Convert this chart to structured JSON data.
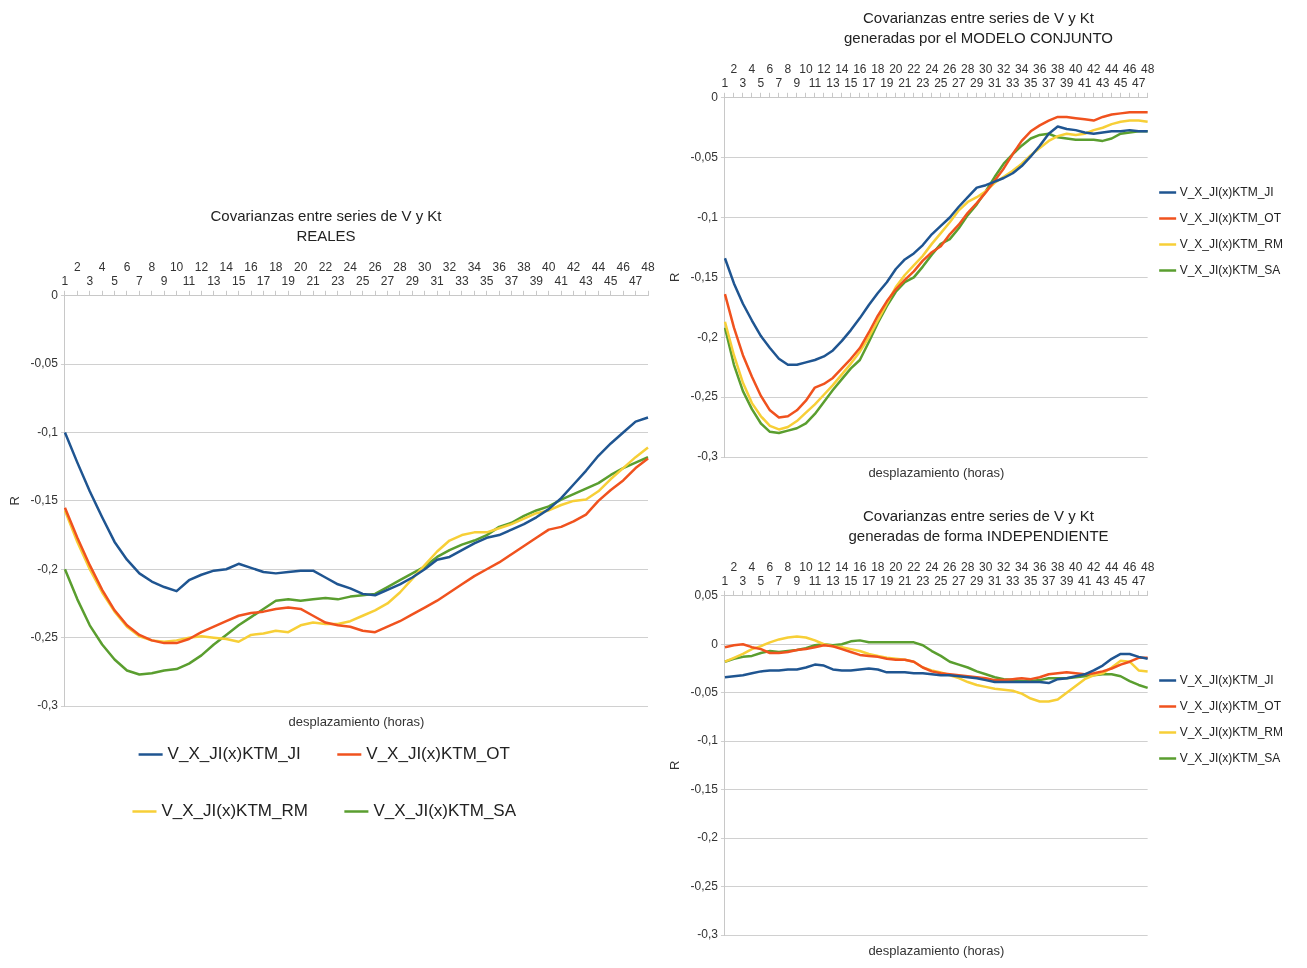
{
  "chart_data": [
    {
      "type": "line",
      "title": "Covarianzas entre series de V y Kt",
      "subtitle": "REALES",
      "xlabel": "desplazamiento (horas)",
      "ylabel": "R",
      "categories": [
        "1",
        "2",
        "3",
        "4",
        "5",
        "6",
        "7",
        "8",
        "9",
        "10",
        "11",
        "12",
        "13",
        "14",
        "15",
        "16",
        "17",
        "18",
        "19",
        "20",
        "21",
        "22",
        "23",
        "24",
        "25",
        "26",
        "27",
        "28",
        "29",
        "30",
        "31",
        "32",
        "33",
        "34",
        "35",
        "36",
        "37",
        "38",
        "39",
        "40",
        "41",
        "42",
        "43",
        "44",
        "45",
        "46",
        "47",
        "48"
      ],
      "series": [
        {
          "name": "V_X_JI(x)KTM_JI",
          "color": "#1f5591",
          "values": [
            -0.1,
            -0.122,
            -0.143,
            -0.162,
            -0.18,
            -0.193,
            -0.203,
            -0.209,
            -0.213,
            -0.216,
            -0.208,
            -0.204,
            -0.201,
            -0.2,
            -0.196,
            -0.199,
            -0.202,
            -0.203,
            -0.202,
            -0.201,
            -0.201,
            -0.206,
            -0.211,
            -0.214,
            -0.218,
            -0.219,
            -0.215,
            -0.211,
            -0.206,
            -0.2,
            -0.193,
            -0.191,
            -0.186,
            -0.181,
            -0.177,
            -0.175,
            -0.171,
            -0.167,
            -0.162,
            -0.156,
            -0.148,
            -0.138,
            -0.128,
            -0.117,
            -0.108,
            -0.1,
            -0.092,
            -0.089
          ]
        },
        {
          "name": "V_X_JI(x)KTM_OT",
          "color": "#f0521e",
          "values": [
            -0.155,
            -0.177,
            -0.197,
            -0.215,
            -0.23,
            -0.241,
            -0.248,
            -0.252,
            -0.254,
            -0.254,
            -0.251,
            -0.246,
            -0.242,
            -0.238,
            -0.234,
            -0.232,
            -0.231,
            -0.229,
            -0.228,
            -0.229,
            -0.234,
            -0.239,
            -0.241,
            -0.242,
            -0.245,
            -0.246,
            -0.242,
            -0.238,
            -0.233,
            -0.228,
            -0.223,
            -0.217,
            -0.211,
            -0.205,
            -0.2,
            -0.195,
            -0.189,
            -0.183,
            -0.177,
            -0.171,
            -0.169,
            -0.165,
            -0.16,
            -0.15,
            -0.142,
            -0.135,
            -0.126,
            -0.119
          ]
        },
        {
          "name": "V_X_JI(x)KTM_RM",
          "color": "#f7cf37",
          "values": [
            -0.157,
            -0.18,
            -0.2,
            -0.217,
            -0.231,
            -0.242,
            -0.249,
            -0.252,
            -0.253,
            -0.252,
            -0.25,
            -0.249,
            -0.25,
            -0.251,
            -0.253,
            -0.248,
            -0.247,
            -0.245,
            -0.246,
            -0.241,
            -0.239,
            -0.24,
            -0.24,
            -0.238,
            -0.234,
            -0.23,
            -0.225,
            -0.217,
            -0.207,
            -0.197,
            -0.187,
            -0.179,
            -0.175,
            -0.173,
            -0.173,
            -0.17,
            -0.167,
            -0.163,
            -0.159,
            -0.157,
            -0.153,
            -0.15,
            -0.149,
            -0.143,
            -0.134,
            -0.126,
            -0.118,
            -0.111
          ]
        },
        {
          "name": "V_X_JI(x)KTM_SA",
          "color": "#5a9e2f",
          "values": [
            -0.2,
            -0.222,
            -0.241,
            -0.255,
            -0.266,
            -0.274,
            -0.277,
            -0.276,
            -0.274,
            -0.273,
            -0.269,
            -0.263,
            -0.255,
            -0.248,
            -0.241,
            -0.235,
            -0.229,
            -0.223,
            -0.222,
            -0.223,
            -0.222,
            -0.221,
            -0.222,
            -0.22,
            -0.219,
            -0.218,
            -0.213,
            -0.208,
            -0.203,
            -0.198,
            -0.191,
            -0.186,
            -0.182,
            -0.179,
            -0.175,
            -0.169,
            -0.166,
            -0.161,
            -0.157,
            -0.154,
            -0.149,
            -0.145,
            -0.141,
            -0.137,
            -0.131,
            -0.126,
            -0.122,
            -0.118
          ]
        }
      ],
      "ylim": [
        -0.3,
        0
      ],
      "yticks": [
        {
          "value": -0.3,
          "label": "-0,3"
        },
        {
          "value": -0.25,
          "label": "-0,25"
        },
        {
          "value": -0.2,
          "label": "-0,2"
        },
        {
          "value": -0.15,
          "label": "-0,15"
        },
        {
          "value": -0.1,
          "label": "-0,1"
        },
        {
          "value": -0.05,
          "label": "-0,05"
        },
        {
          "value": 0,
          "label": "0"
        }
      ],
      "grid": "y",
      "legend": "bottom"
    },
    {
      "type": "line",
      "title": "Covarianzas entre series de V y Kt",
      "subtitle": "generadas por el MODELO CONJUNTO",
      "xlabel": "desplazamiento (horas)",
      "ylabel": "R",
      "categories": [
        "1",
        "2",
        "3",
        "4",
        "5",
        "6",
        "7",
        "8",
        "9",
        "10",
        "11",
        "12",
        "13",
        "14",
        "15",
        "16",
        "17",
        "18",
        "19",
        "20",
        "21",
        "22",
        "23",
        "24",
        "25",
        "26",
        "27",
        "28",
        "29",
        "30",
        "31",
        "32",
        "33",
        "34",
        "35",
        "36",
        "37",
        "38",
        "39",
        "40",
        "41",
        "42",
        "43",
        "44",
        "45",
        "46",
        "47",
        "48"
      ],
      "series": [
        {
          "name": "V_X_JI(x)KTM_JI",
          "color": "#1f5591",
          "values": [
            -0.134,
            -0.155,
            -0.172,
            -0.186,
            -0.199,
            -0.209,
            -0.218,
            -0.223,
            -0.223,
            -0.221,
            -0.219,
            -0.216,
            -0.211,
            -0.203,
            -0.194,
            -0.184,
            -0.173,
            -0.163,
            -0.154,
            -0.143,
            -0.135,
            -0.13,
            -0.123,
            -0.114,
            -0.107,
            -0.1,
            -0.091,
            -0.083,
            -0.075,
            -0.073,
            -0.07,
            -0.067,
            -0.063,
            -0.057,
            -0.049,
            -0.04,
            -0.03,
            -0.024,
            -0.026,
            -0.027,
            -0.029,
            -0.03,
            -0.029,
            -0.028,
            -0.028,
            -0.027,
            -0.028,
            -0.028
          ]
        },
        {
          "name": "V_X_JI(x)KTM_OT",
          "color": "#f0521e",
          "values": [
            -0.164,
            -0.192,
            -0.215,
            -0.233,
            -0.249,
            -0.261,
            -0.267,
            -0.266,
            -0.261,
            -0.253,
            -0.242,
            -0.239,
            -0.234,
            -0.226,
            -0.218,
            -0.209,
            -0.196,
            -0.182,
            -0.17,
            -0.16,
            -0.152,
            -0.145,
            -0.136,
            -0.129,
            -0.124,
            -0.114,
            -0.106,
            -0.096,
            -0.088,
            -0.079,
            -0.069,
            -0.059,
            -0.047,
            -0.036,
            -0.028,
            -0.023,
            -0.019,
            -0.016,
            -0.016,
            -0.017,
            -0.018,
            -0.019,
            -0.016,
            -0.014,
            -0.013,
            -0.012,
            -0.012,
            -0.012
          ]
        },
        {
          "name": "V_X_JI(x)KTM_RM",
          "color": "#f7cf37",
          "values": [
            -0.187,
            -0.215,
            -0.238,
            -0.255,
            -0.266,
            -0.274,
            -0.277,
            -0.275,
            -0.27,
            -0.263,
            -0.256,
            -0.248,
            -0.24,
            -0.231,
            -0.222,
            -0.212,
            -0.2,
            -0.186,
            -0.172,
            -0.158,
            -0.148,
            -0.14,
            -0.132,
            -0.122,
            -0.113,
            -0.104,
            -0.094,
            -0.087,
            -0.083,
            -0.078,
            -0.071,
            -0.066,
            -0.061,
            -0.055,
            -0.048,
            -0.042,
            -0.036,
            -0.032,
            -0.03,
            -0.031,
            -0.03,
            -0.027,
            -0.025,
            -0.022,
            -0.02,
            -0.019,
            -0.019,
            -0.02
          ]
        },
        {
          "name": "V_X_JI(x)KTM_SA",
          "color": "#5a9e2f",
          "values": [
            -0.192,
            -0.223,
            -0.245,
            -0.26,
            -0.272,
            -0.279,
            -0.28,
            -0.278,
            -0.276,
            -0.272,
            -0.264,
            -0.254,
            -0.244,
            -0.235,
            -0.226,
            -0.219,
            -0.204,
            -0.188,
            -0.174,
            -0.162,
            -0.154,
            -0.15,
            -0.141,
            -0.131,
            -0.122,
            -0.118,
            -0.109,
            -0.098,
            -0.089,
            -0.078,
            -0.066,
            -0.055,
            -0.047,
            -0.04,
            -0.034,
            -0.031,
            -0.03,
            -0.033,
            -0.034,
            -0.035,
            -0.035,
            -0.035,
            -0.036,
            -0.034,
            -0.03,
            -0.029,
            -0.028,
            -0.028
          ]
        }
      ],
      "ylim": [
        -0.3,
        0
      ],
      "yticks": [
        {
          "value": -0.3,
          "label": "-0,3"
        },
        {
          "value": -0.25,
          "label": "-0,25"
        },
        {
          "value": -0.2,
          "label": "-0,2"
        },
        {
          "value": -0.15,
          "label": "-0,15"
        },
        {
          "value": -0.1,
          "label": "-0,1"
        },
        {
          "value": -0.05,
          "label": "-0,05"
        },
        {
          "value": 0,
          "label": "0"
        }
      ],
      "grid": "y",
      "legend": "right"
    },
    {
      "type": "line",
      "title": "Covarianzas entre series de V y Kt",
      "subtitle": "generadas de forma INDEPENDIENTE",
      "xlabel": "desplazamiento (horas)",
      "ylabel": "R",
      "categories": [
        "1",
        "2",
        "3",
        "4",
        "5",
        "6",
        "7",
        "8",
        "9",
        "10",
        "11",
        "12",
        "13",
        "14",
        "15",
        "16",
        "17",
        "18",
        "19",
        "20",
        "21",
        "22",
        "23",
        "24",
        "25",
        "26",
        "27",
        "28",
        "29",
        "30",
        "31",
        "32",
        "33",
        "34",
        "35",
        "36",
        "37",
        "38",
        "39",
        "40",
        "41",
        "42",
        "43",
        "44",
        "45",
        "46",
        "47",
        "48"
      ],
      "series": [
        {
          "name": "V_X_JI(x)KTM_JI",
          "color": "#1f5591",
          "values": [
            -0.034,
            -0.033,
            -0.032,
            -0.03,
            -0.028,
            -0.027,
            -0.027,
            -0.026,
            -0.026,
            -0.024,
            -0.021,
            -0.022,
            -0.026,
            -0.027,
            -0.027,
            -0.026,
            -0.025,
            -0.026,
            -0.029,
            -0.029,
            -0.029,
            -0.03,
            -0.03,
            -0.031,
            -0.032,
            -0.032,
            -0.033,
            -0.034,
            -0.035,
            -0.037,
            -0.039,
            -0.039,
            -0.039,
            -0.039,
            -0.039,
            -0.039,
            -0.04,
            -0.036,
            -0.035,
            -0.033,
            -0.031,
            -0.027,
            -0.022,
            -0.015,
            -0.01,
            -0.01,
            -0.013,
            -0.015
          ]
        },
        {
          "name": "V_X_JI(x)KTM_OT",
          "color": "#f0521e",
          "values": [
            -0.003,
            -0.001,
            0,
            -0.003,
            -0.005,
            -0.009,
            -0.009,
            -0.008,
            -0.006,
            -0.005,
            -0.003,
            -0.001,
            -0.002,
            -0.005,
            -0.008,
            -0.011,
            -0.012,
            -0.013,
            -0.015,
            -0.016,
            -0.016,
            -0.018,
            -0.024,
            -0.028,
            -0.03,
            -0.031,
            -0.032,
            -0.033,
            -0.034,
            -0.035,
            -0.037,
            -0.037,
            -0.036,
            -0.035,
            -0.036,
            -0.034,
            -0.031,
            -0.03,
            -0.029,
            -0.03,
            -0.031,
            -0.03,
            -0.028,
            -0.025,
            -0.021,
            -0.018,
            -0.014,
            -0.014
          ]
        },
        {
          "name": "V_X_JI(x)KTM_RM",
          "color": "#f7cf37",
          "values": [
            -0.018,
            -0.014,
            -0.01,
            -0.005,
            -0.002,
            0.002,
            0.005,
            0.007,
            0.008,
            0.007,
            0.004,
            0,
            -0.002,
            -0.003,
            -0.005,
            -0.007,
            -0.01,
            -0.012,
            -0.014,
            -0.015,
            -0.016,
            -0.018,
            -0.024,
            -0.027,
            -0.029,
            -0.032,
            -0.035,
            -0.039,
            -0.042,
            -0.044,
            -0.046,
            -0.047,
            -0.048,
            -0.051,
            -0.056,
            -0.059,
            -0.059,
            -0.057,
            -0.05,
            -0.043,
            -0.036,
            -0.032,
            -0.03,
            -0.024,
            -0.017,
            -0.018,
            -0.027,
            -0.028
          ]
        },
        {
          "name": "V_X_JI(x)KTM_SA",
          "color": "#5a9e2f",
          "values": [
            -0.018,
            -0.015,
            -0.013,
            -0.012,
            -0.009,
            -0.007,
            -0.008,
            -0.007,
            -0.006,
            -0.004,
            -0.001,
            0,
            -0.001,
            0,
            0.003,
            0.004,
            0.002,
            0.002,
            0.002,
            0.002,
            0.002,
            0.002,
            -0.001,
            -0.007,
            -0.012,
            -0.018,
            -0.021,
            -0.024,
            -0.028,
            -0.031,
            -0.034,
            -0.036,
            -0.037,
            -0.038,
            -0.038,
            -0.037,
            -0.035,
            -0.035,
            -0.035,
            -0.034,
            -0.033,
            -0.032,
            -0.031,
            -0.031,
            -0.033,
            -0.038,
            -0.042,
            -0.045
          ]
        }
      ],
      "ylim": [
        -0.3,
        0.05
      ],
      "yticks": [
        {
          "value": -0.3,
          "label": "-0,3"
        },
        {
          "value": -0.25,
          "label": "-0,25"
        },
        {
          "value": -0.2,
          "label": "-0,2"
        },
        {
          "value": -0.15,
          "label": "-0,15"
        },
        {
          "value": -0.1,
          "label": "-0,1"
        },
        {
          "value": -0.05,
          "label": "-0,05"
        },
        {
          "value": 0,
          "label": "0"
        },
        {
          "value": 0.05,
          "label": "0,05"
        }
      ],
      "grid": "y",
      "legend": "right"
    }
  ]
}
